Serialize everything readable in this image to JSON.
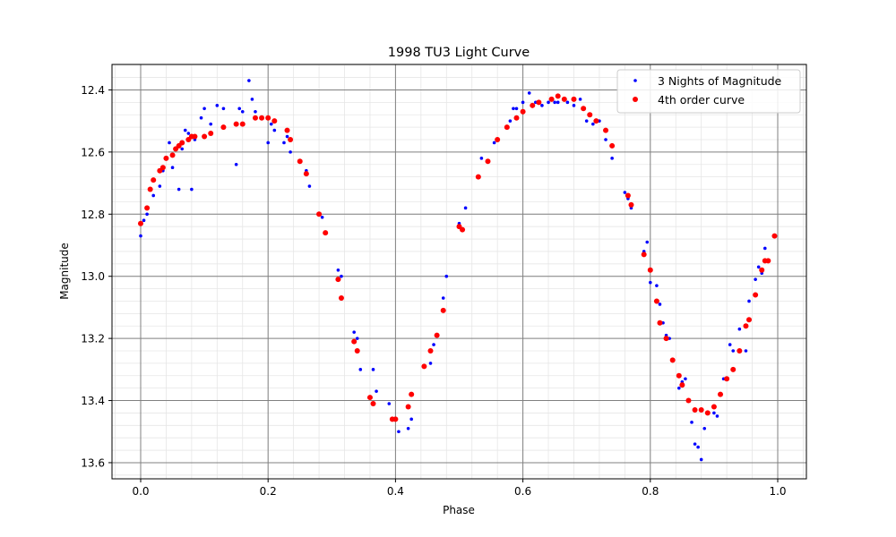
{
  "chart_data": {
    "type": "scatter",
    "title": "1998 TU3 Light Curve",
    "xlabel": "Phase",
    "ylabel": "Magnitude",
    "xlim": [
      -0.045,
      1.045
    ],
    "ylim": [
      12.318,
      13.652
    ],
    "y_inverted": true,
    "grid": true,
    "minor_grid": true,
    "legend": "top-right",
    "x_ticks": [
      0.0,
      0.2,
      0.4,
      0.6,
      0.8,
      1.0
    ],
    "x_tick_labels": [
      "0.0",
      "0.2",
      "0.4",
      "0.6",
      "0.8",
      "1.0"
    ],
    "y_ticks": [
      12.4,
      12.6,
      12.8,
      13.0,
      13.2,
      13.4,
      13.6
    ],
    "y_tick_labels": [
      "12.4",
      "12.6",
      "12.8",
      "13.0",
      "13.2",
      "13.4",
      "13.6"
    ],
    "series": [
      {
        "name": "3 Nights of Magnitude",
        "color": "#0000ff",
        "x": [
          0.0,
          0.005,
          0.01,
          0.02,
          0.03,
          0.035,
          0.045,
          0.05,
          0.055,
          0.06,
          0.065,
          0.07,
          0.075,
          0.08,
          0.085,
          0.095,
          0.1,
          0.11,
          0.12,
          0.13,
          0.15,
          0.155,
          0.16,
          0.17,
          0.175,
          0.18,
          0.2,
          0.205,
          0.21,
          0.225,
          0.23,
          0.235,
          0.26,
          0.265,
          0.285,
          0.31,
          0.315,
          0.335,
          0.34,
          0.345,
          0.365,
          0.37,
          0.39,
          0.405,
          0.42,
          0.425,
          0.455,
          0.46,
          0.475,
          0.48,
          0.5,
          0.51,
          0.53,
          0.535,
          0.555,
          0.58,
          0.585,
          0.59,
          0.6,
          0.61,
          0.62,
          0.63,
          0.64,
          0.65,
          0.655,
          0.67,
          0.68,
          0.69,
          0.7,
          0.71,
          0.72,
          0.73,
          0.74,
          0.76,
          0.765,
          0.77,
          0.79,
          0.795,
          0.8,
          0.81,
          0.815,
          0.82,
          0.825,
          0.83,
          0.845,
          0.85,
          0.855,
          0.865,
          0.87,
          0.875,
          0.88,
          0.885,
          0.9,
          0.905,
          0.915,
          0.925,
          0.93,
          0.94,
          0.95,
          0.955,
          0.965,
          0.97,
          0.975,
          0.98,
          0.985
        ],
        "y": [
          12.87,
          12.82,
          12.8,
          12.74,
          12.71,
          12.66,
          12.57,
          12.65,
          12.59,
          12.72,
          12.59,
          12.53,
          12.54,
          12.72,
          12.56,
          12.49,
          12.46,
          12.51,
          12.45,
          12.46,
          12.64,
          12.46,
          12.47,
          12.37,
          12.43,
          12.47,
          12.57,
          12.51,
          12.53,
          12.57,
          12.55,
          12.6,
          12.66,
          12.71,
          12.81,
          12.98,
          13.0,
          13.18,
          13.2,
          13.3,
          13.3,
          13.37,
          13.41,
          13.5,
          13.49,
          13.46,
          13.28,
          13.22,
          13.07,
          13.0,
          12.83,
          12.78,
          12.68,
          12.62,
          12.57,
          12.5,
          12.46,
          12.46,
          12.44,
          12.41,
          12.44,
          12.45,
          12.44,
          12.44,
          12.44,
          12.44,
          12.45,
          12.43,
          12.5,
          12.51,
          12.5,
          12.56,
          12.62,
          12.73,
          12.75,
          12.78,
          12.92,
          12.89,
          13.02,
          13.03,
          13.09,
          13.15,
          13.19,
          13.2,
          13.36,
          13.34,
          13.33,
          13.47,
          13.54,
          13.55,
          13.59,
          13.49,
          13.44,
          13.45,
          13.33,
          13.22,
          13.24,
          13.17,
          13.24,
          13.08,
          13.01,
          12.97,
          12.99,
          12.91,
          12.95
        ]
      },
      {
        "name": "4th order curve",
        "color": "#ff0000",
        "x": [
          0.0,
          0.01,
          0.015,
          0.02,
          0.03,
          0.035,
          0.04,
          0.05,
          0.055,
          0.06,
          0.065,
          0.075,
          0.08,
          0.085,
          0.1,
          0.11,
          0.13,
          0.15,
          0.16,
          0.18,
          0.19,
          0.2,
          0.21,
          0.23,
          0.235,
          0.25,
          0.26,
          0.28,
          0.29,
          0.31,
          0.315,
          0.335,
          0.34,
          0.36,
          0.365,
          0.395,
          0.4,
          0.42,
          0.425,
          0.445,
          0.455,
          0.465,
          0.475,
          0.5,
          0.505,
          0.53,
          0.545,
          0.56,
          0.575,
          0.59,
          0.6,
          0.615,
          0.625,
          0.645,
          0.655,
          0.665,
          0.68,
          0.695,
          0.705,
          0.715,
          0.73,
          0.74,
          0.765,
          0.77,
          0.79,
          0.8,
          0.81,
          0.815,
          0.825,
          0.835,
          0.845,
          0.85,
          0.86,
          0.87,
          0.88,
          0.89,
          0.9,
          0.91,
          0.92,
          0.93,
          0.94,
          0.95,
          0.955,
          0.965,
          0.975,
          0.98,
          0.985,
          0.995
        ],
        "y": [
          12.83,
          12.78,
          12.72,
          12.69,
          12.66,
          12.65,
          12.62,
          12.61,
          12.59,
          12.58,
          12.57,
          12.56,
          12.55,
          12.55,
          12.55,
          12.54,
          12.52,
          12.51,
          12.51,
          12.49,
          12.49,
          12.49,
          12.5,
          12.53,
          12.56,
          12.63,
          12.67,
          12.8,
          12.86,
          13.01,
          13.07,
          13.21,
          13.24,
          13.39,
          13.41,
          13.46,
          13.46,
          13.42,
          13.38,
          13.29,
          13.24,
          13.19,
          13.11,
          12.84,
          12.85,
          12.68,
          12.63,
          12.56,
          12.52,
          12.49,
          12.47,
          12.45,
          12.44,
          12.43,
          12.42,
          12.43,
          12.43,
          12.46,
          12.48,
          12.5,
          12.53,
          12.58,
          12.74,
          12.77,
          12.93,
          12.98,
          13.08,
          13.15,
          13.2,
          13.27,
          13.32,
          13.35,
          13.4,
          13.43,
          13.43,
          13.44,
          13.42,
          13.38,
          13.33,
          13.3,
          13.24,
          13.16,
          13.14,
          13.06,
          12.98,
          12.95,
          12.95,
          12.87
        ]
      }
    ]
  }
}
